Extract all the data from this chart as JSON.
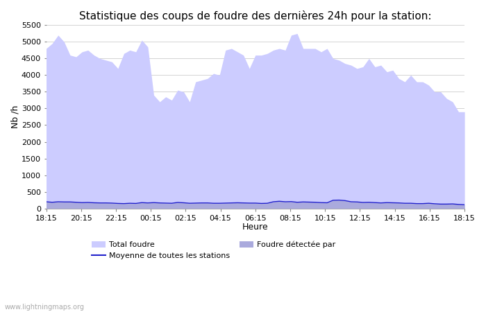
{
  "title": "Statistique des coups de foudre des dernières 24h pour la station:",
  "xlabel": "Heure",
  "ylabel": "Nb /h",
  "watermark": "www.lightningmaps.org",
  "ylim": [
    0,
    5500
  ],
  "yticks": [
    0,
    500,
    1000,
    1500,
    2000,
    2500,
    3000,
    3500,
    4000,
    4500,
    5000,
    5500
  ],
  "xtick_labels": [
    "18:15",
    "20:15",
    "22:15",
    "00:15",
    "02:15",
    "04:15",
    "06:15",
    "08:15",
    "10:15",
    "12:15",
    "14:15",
    "16:15",
    "18:15"
  ],
  "fill_color_total": "#ccccff",
  "fill_color_detected": "#aaaadd",
  "line_color": "#2222cc",
  "background_color": "#ffffff",
  "grid_color": "#cccccc",
  "title_fontsize": 11,
  "axis_fontsize": 9,
  "tick_fontsize": 8,
  "legend_labels": [
    "Total foudre",
    "Moyenne de toutes les stations",
    "Foudre détectée par"
  ],
  "total_foudre": [
    4800,
    4950,
    5200,
    5000,
    4600,
    4550,
    4700,
    4750,
    4600,
    4500,
    4450,
    4400,
    4200,
    4650,
    4750,
    4700,
    5050,
    4850,
    3400,
    3200,
    3350,
    3250,
    3550,
    3500,
    3200,
    3800,
    3850,
    3900,
    4050,
    4000,
    4750,
    4800,
    4700,
    4600,
    4200,
    4600,
    4600,
    4650,
    4750,
    4800,
    4750,
    5200,
    5250,
    4800,
    4800,
    4800,
    4700,
    4800,
    4500,
    4450,
    4350,
    4300,
    4200,
    4250,
    4500,
    4250,
    4300,
    4100,
    4150,
    3900,
    3800,
    4000,
    3800,
    3800,
    3700,
    3500,
    3500,
    3300,
    3200,
    2900,
    2900
  ],
  "moyenne": [
    200,
    185,
    200,
    195,
    195,
    185,
    175,
    180,
    170,
    165,
    165,
    160,
    150,
    145,
    155,
    150,
    175,
    165,
    175,
    165,
    160,
    155,
    180,
    170,
    155,
    160,
    165,
    165,
    155,
    155,
    160,
    165,
    170,
    165,
    160,
    160,
    150,
    155,
    200,
    215,
    200,
    205,
    185,
    195,
    190,
    185,
    175,
    170,
    245,
    250,
    235,
    200,
    195,
    180,
    185,
    175,
    165,
    175,
    170,
    165,
    155,
    155,
    145,
    145,
    155,
    140,
    130,
    130,
    135,
    120,
    110
  ]
}
